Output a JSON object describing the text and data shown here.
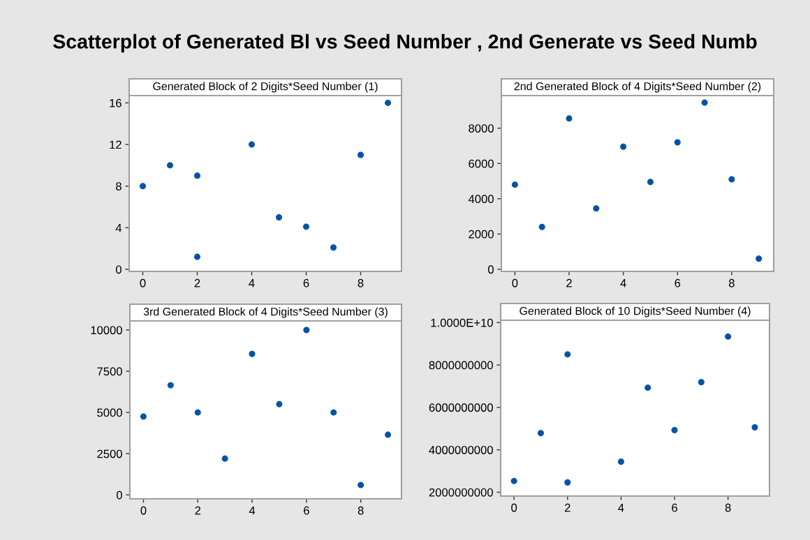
{
  "chart_data": [
    {
      "type": "scatter",
      "title": "Generated Block of 2 Digits*Seed Number (1)",
      "annotations": [
        "Scatterplot of Generated Bl vs Seed Number , 2nd Generate vs Seed Numb"
      ],
      "marker": "circle",
      "grid": false,
      "x": [
        0,
        1,
        2,
        2,
        4,
        5,
        6,
        7,
        8,
        9
      ],
      "series": [
        {
          "color": "#0054a6",
          "values": [
            8,
            10,
            9,
            1.2,
            12,
            5,
            4.1,
            2.1,
            11,
            16
          ]
        }
      ],
      "xlim": [
        -0.5,
        9.5
      ],
      "xticks": [
        0,
        2,
        4,
        6,
        8
      ],
      "ylim": [
        -0.2,
        16.7
      ],
      "yticks": [
        0,
        4,
        8,
        12,
        16
      ]
    },
    {
      "type": "scatter",
      "title": "2nd Generated Block of 4 Digits*Seed Number (2)",
      "marker": "circle",
      "grid": false,
      "x": [
        0,
        1,
        2,
        3,
        4,
        5,
        6,
        7,
        8,
        9
      ],
      "series": [
        {
          "color": "#0054a6",
          "values": [
            4800,
            2400,
            8550,
            3450,
            6950,
            4950,
            7200,
            9450,
            5100,
            600
          ]
        }
      ],
      "xlim": [
        -0.5,
        9.55
      ],
      "xticks": [
        0,
        2,
        4,
        6,
        8
      ],
      "ylim": [
        -120,
        9850
      ],
      "yticks": [
        0,
        2000,
        4000,
        6000,
        8000
      ]
    },
    {
      "type": "scatter",
      "title": "3rd Generated Block of 4 Digits*Seed Number (3)",
      "marker": "circle",
      "grid": false,
      "x": [
        0,
        1,
        2,
        3,
        4,
        5,
        6,
        7,
        8,
        9
      ],
      "series": [
        {
          "color": "#0054a6",
          "values": [
            4750,
            6650,
            5000,
            2200,
            8550,
            5500,
            10000,
            5000,
            600,
            3650
          ]
        }
      ],
      "xlim": [
        -0.5,
        9.5
      ],
      "xticks": [
        0,
        2,
        4,
        6,
        8
      ],
      "ylim": [
        -240,
        10550
      ],
      "yticks": [
        0,
        2500,
        5000,
        7500,
        10000
      ]
    },
    {
      "type": "scatter",
      "title": "Generated Block of 10 Digits*Seed Number (4)",
      "marker": "circle",
      "grid": false,
      "x": [
        0,
        1,
        2,
        2,
        4,
        5,
        6,
        7,
        8,
        9
      ],
      "series": [
        {
          "color": "#0054a6",
          "values": [
            2530000000,
            4790000000,
            8500000000,
            2460000000,
            3440000000,
            6930000000,
            4930000000,
            7190000000,
            9340000000,
            5060000000
          ]
        }
      ],
      "xlim": [
        -0.5,
        9.55
      ],
      "xticks": [
        0,
        2,
        4,
        6,
        8
      ],
      "ylim": [
        1820000000,
        10110000000
      ],
      "yticks": [
        2000000000,
        4000000000,
        6000000000,
        8000000000,
        {
          "value": 10000000000,
          "label": "1.0000E+10"
        }
      ]
    }
  ]
}
